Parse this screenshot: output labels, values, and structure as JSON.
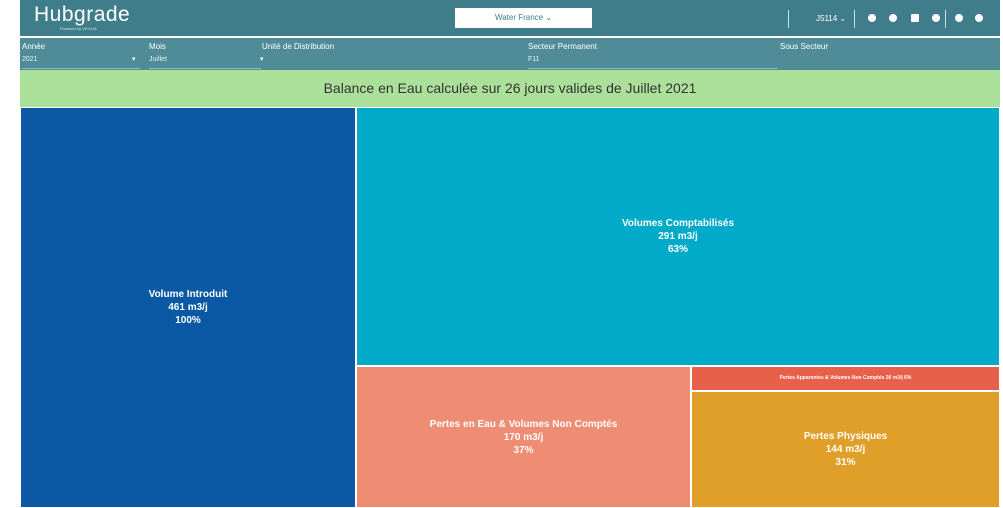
{
  "header": {
    "logo": "Hubgrade",
    "logo_sub": "Powered by VEOLIA",
    "selector": "Water France",
    "user": "J5114"
  },
  "filters": [
    {
      "label": "Année",
      "value": "2021"
    },
    {
      "label": "Mois",
      "value": "Juillet"
    },
    {
      "label": "Unité de Distribution",
      "value": ""
    },
    {
      "label": "Secteur Permanent",
      "value": "F11"
    },
    {
      "label": "Sous Secteur",
      "value": ""
    }
  ],
  "banner": "Balance en Eau calculée sur 26 jours valides de Juillet 2021",
  "tiles": [
    {
      "title": "Volume Introduit",
      "volume": "461 m3/j",
      "share": "100%"
    },
    {
      "title": "Volumes Comptabilisés",
      "volume": "291 m3/j",
      "share": "63%"
    },
    {
      "title": "Pertes en Eau & Volumes Non Comptés",
      "volume": "170 m3/j",
      "share": "37%"
    },
    {
      "title": "Pertes Apparentes & Volumes Non Comptés 26 m3/j 6%"
    },
    {
      "title": "Pertes Physiques",
      "volume": "144 m3/j",
      "share": "31%"
    }
  ]
}
